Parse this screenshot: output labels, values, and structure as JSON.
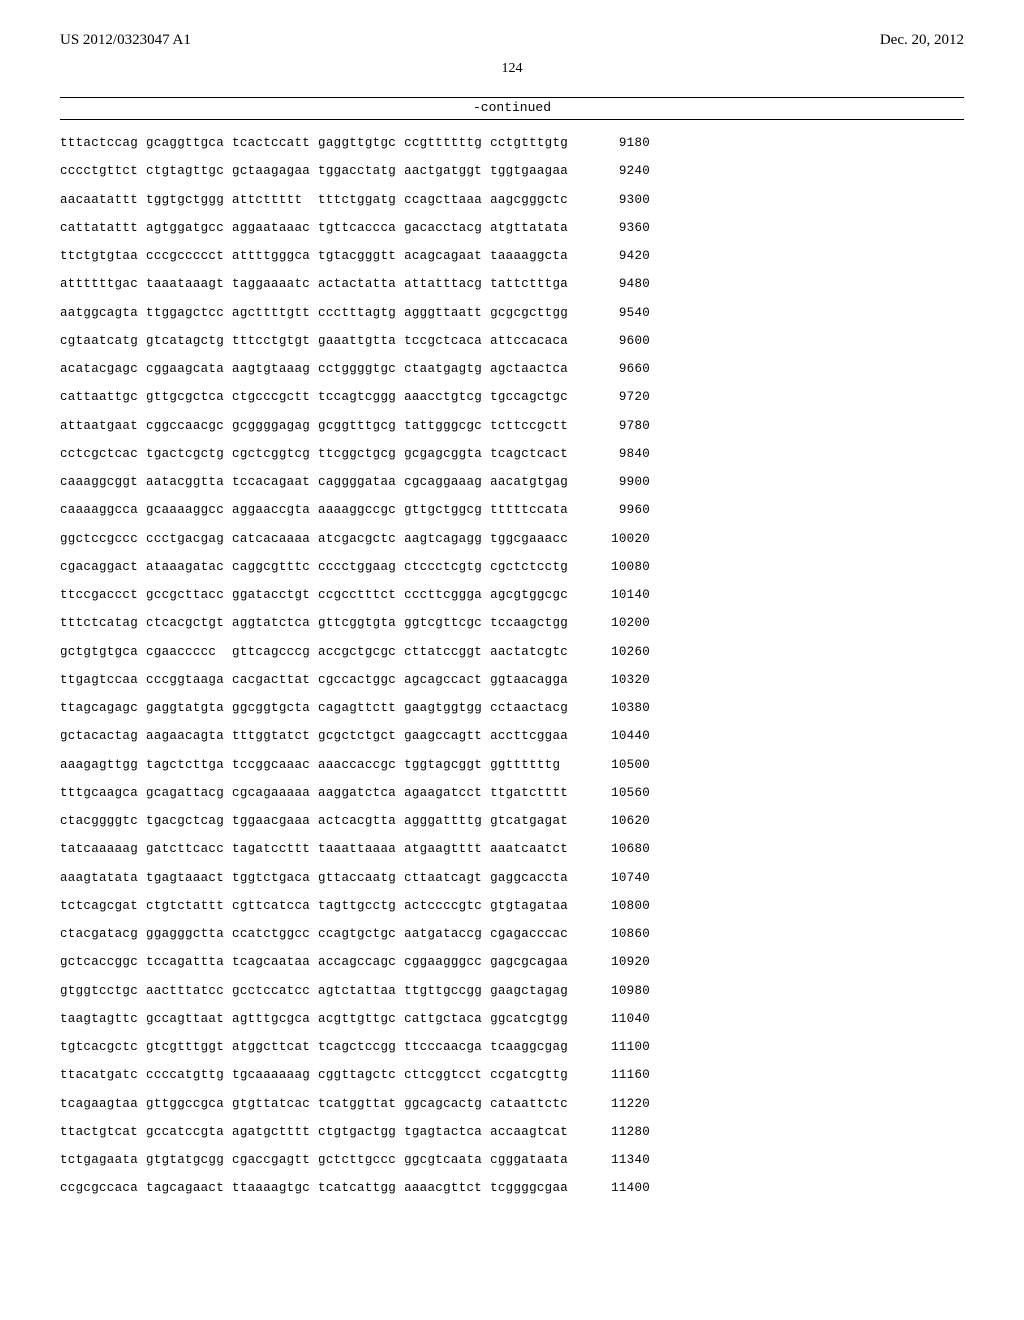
{
  "header": {
    "pub_number": "US 2012/0323047 A1",
    "pub_date": "Dec. 20, 2012"
  },
  "page_number": "124",
  "continued_label": "-continued",
  "sequence": {
    "rows": [
      {
        "groups": [
          "tttactccag",
          "gcaggttgca",
          "tcactccatt",
          "gaggttgtgc",
          "ccgttttttg",
          "cctgtttgtg"
        ],
        "pos": "9180"
      },
      {
        "groups": [
          "cccctgttct",
          "ctgtagttgc",
          "gctaagagaa",
          "tggacctatg",
          "aactgatggt",
          "tggtgaagaa"
        ],
        "pos": "9240"
      },
      {
        "groups": [
          "aacaatattt",
          "tggtgctggg",
          "attcttttt",
          "tttctggatg",
          "ccagcttaaa",
          "aagcgggctc"
        ],
        "pos": "9300"
      },
      {
        "groups": [
          "cattatattt",
          "agtggatgcc",
          "aggaataaac",
          "tgttcaccca",
          "gacacctacg",
          "atgttatata"
        ],
        "pos": "9360"
      },
      {
        "groups": [
          "ttctgtgtaa",
          "cccgccccct",
          "attttgggca",
          "tgtacgggtt",
          "acagcagaat",
          "taaaaggcta"
        ],
        "pos": "9420"
      },
      {
        "groups": [
          "attttttgac",
          "taaataaagt",
          "taggaaaatc",
          "actactatta",
          "attatttacg",
          "tattctttga"
        ],
        "pos": "9480"
      },
      {
        "groups": [
          "aatggcagta",
          "ttggagctcc",
          "agcttttgtt",
          "ccctttagtg",
          "agggttaatt",
          "gcgcgcttgg"
        ],
        "pos": "9540"
      },
      {
        "groups": [
          "cgtaatcatg",
          "gtcatagctg",
          "tttcctgtgt",
          "gaaattgtta",
          "tccgctcaca",
          "attccacaca"
        ],
        "pos": "9600"
      },
      {
        "groups": [
          "acatacgagc",
          "cggaagcata",
          "aagtgtaaag",
          "cctggggtgc",
          "ctaatgagtg",
          "agctaactca"
        ],
        "pos": "9660"
      },
      {
        "groups": [
          "cattaattgc",
          "gttgcgctca",
          "ctgcccgctt",
          "tccagtcggg",
          "aaacctgtcg",
          "tgccagctgc"
        ],
        "pos": "9720"
      },
      {
        "groups": [
          "attaatgaat",
          "cggccaacgc",
          "gcggggagag",
          "gcggtttgcg",
          "tattgggcgc",
          "tcttccgctt"
        ],
        "pos": "9780"
      },
      {
        "groups": [
          "cctcgctcac",
          "tgactcgctg",
          "cgctcggtcg",
          "ttcggctgcg",
          "gcgagcggta",
          "tcagctcact"
        ],
        "pos": "9840"
      },
      {
        "groups": [
          "caaaggcggt",
          "aatacggtta",
          "tccacagaat",
          "caggggataa",
          "cgcaggaaag",
          "aacatgtgag"
        ],
        "pos": "9900"
      },
      {
        "groups": [
          "caaaaggcca",
          "gcaaaaggcc",
          "aggaaccgta",
          "aaaaggccgc",
          "gttgctggcg",
          "tttttccata"
        ],
        "pos": "9960"
      },
      {
        "groups": [
          "ggctccgccc",
          "ccctgacgag",
          "catcacaaaa",
          "atcgacgctc",
          "aagtcagagg",
          "tggcgaaacc"
        ],
        "pos": "10020"
      },
      {
        "groups": [
          "cgacaggact",
          "ataaagatac",
          "caggcgtttc",
          "cccctggaag",
          "ctccctcgtg",
          "cgctctcctg"
        ],
        "pos": "10080"
      },
      {
        "groups": [
          "ttccgaccct",
          "gccgcttacc",
          "ggatacctgt",
          "ccgcctttct",
          "cccttcggga",
          "agcgtggcgc"
        ],
        "pos": "10140"
      },
      {
        "groups": [
          "tttctcatag",
          "ctcacgctgt",
          "aggtatctca",
          "gttcggtgta",
          "ggtcgttcgc",
          "tccaagctgg"
        ],
        "pos": "10200"
      },
      {
        "groups": [
          "gctgtgtgca",
          "cgaaccccc",
          "gttcagcccg",
          "accgctgcgc",
          "cttatccggt",
          "aactatcgtc"
        ],
        "pos": "10260"
      },
      {
        "groups": [
          "ttgagtccaa",
          "cccggtaaga",
          "cacgacttat",
          "cgccactggc",
          "agcagccact",
          "ggtaacagga"
        ],
        "pos": "10320"
      },
      {
        "groups": [
          "ttagcagagc",
          "gaggtatgta",
          "ggcggtgcta",
          "cagagttctt",
          "gaagtggtgg",
          "cctaactacg"
        ],
        "pos": "10380"
      },
      {
        "groups": [
          "gctacactag",
          "aagaacagta",
          "tttggtatct",
          "gcgctctgct",
          "gaagccagtt",
          "accttcggaa"
        ],
        "pos": "10440"
      },
      {
        "groups": [
          "aaagagttgg",
          "tagctcttga",
          "tccggcaaac",
          "aaaccaccgc",
          "tggtagcggt",
          "ggttttttg"
        ],
        "pos": "10500"
      },
      {
        "groups": [
          "tttgcaagca",
          "gcagattacg",
          "cgcagaaaaa",
          "aaggatctca",
          "agaagatcct",
          "ttgatctttt"
        ],
        "pos": "10560"
      },
      {
        "groups": [
          "ctacggggtc",
          "tgacgctcag",
          "tggaacgaaa",
          "actcacgtta",
          "agggattttg",
          "gtcatgagat"
        ],
        "pos": "10620"
      },
      {
        "groups": [
          "tatcaaaaag",
          "gatcttcacc",
          "tagatccttt",
          "taaattaaaa",
          "atgaagtttt",
          "aaatcaatct"
        ],
        "pos": "10680"
      },
      {
        "groups": [
          "aaagtatata",
          "tgagtaaact",
          "tggtctgaca",
          "gttaccaatg",
          "cttaatcagt",
          "gaggcaccta"
        ],
        "pos": "10740"
      },
      {
        "groups": [
          "tctcagcgat",
          "ctgtctattt",
          "cgttcatcca",
          "tagttgcctg",
          "actccccgtc",
          "gtgtagataa"
        ],
        "pos": "10800"
      },
      {
        "groups": [
          "ctacgatacg",
          "ggagggctta",
          "ccatctggcc",
          "ccagtgctgc",
          "aatgataccg",
          "cgagacccac"
        ],
        "pos": "10860"
      },
      {
        "groups": [
          "gctcaccggc",
          "tccagattta",
          "tcagcaataa",
          "accagccagc",
          "cggaagggcc",
          "gagcgcagaa"
        ],
        "pos": "10920"
      },
      {
        "groups": [
          "gtggtcctgc",
          "aactttatcc",
          "gcctccatcc",
          "agtctattaa",
          "ttgttgccgg",
          "gaagctagag"
        ],
        "pos": "10980"
      },
      {
        "groups": [
          "taagtagttc",
          "gccagttaat",
          "agtttgcgca",
          "acgttgttgc",
          "cattgctaca",
          "ggcatcgtgg"
        ],
        "pos": "11040"
      },
      {
        "groups": [
          "tgtcacgctc",
          "gtcgtttggt",
          "atggcttcat",
          "tcagctccgg",
          "ttcccaacga",
          "tcaaggcgag"
        ],
        "pos": "11100"
      },
      {
        "groups": [
          "ttacatgatc",
          "ccccatgttg",
          "tgcaaaaaag",
          "cggttagctc",
          "cttcggtcct",
          "ccgatcgttg"
        ],
        "pos": "11160"
      },
      {
        "groups": [
          "tcagaagtaa",
          "gttggccgca",
          "gtgttatcac",
          "tcatggttat",
          "ggcagcactg",
          "cataattctc"
        ],
        "pos": "11220"
      },
      {
        "groups": [
          "ttactgtcat",
          "gccatccgta",
          "agatgctttt",
          "ctgtgactgg",
          "tgagtactca",
          "accaagtcat"
        ],
        "pos": "11280"
      },
      {
        "groups": [
          "tctgagaata",
          "gtgtatgcgg",
          "cgaccgagtt",
          "gctcttgccc",
          "ggcgtcaata",
          "cgggataata"
        ],
        "pos": "11340"
      },
      {
        "groups": [
          "ccgcgccaca",
          "tagcagaact",
          "ttaaaagtgc",
          "tcatcattgg",
          "aaaacgttct",
          "tcggggcgaa"
        ],
        "pos": "11400"
      }
    ]
  },
  "style": {
    "background": "#ffffff",
    "text_color": "#000000",
    "mono_font": "Courier New",
    "serif_font": "Times New Roman",
    "font_size_header": 15,
    "font_size_page": 14,
    "font_size_seq": 12.5,
    "line_height_seq": 2.1
  }
}
